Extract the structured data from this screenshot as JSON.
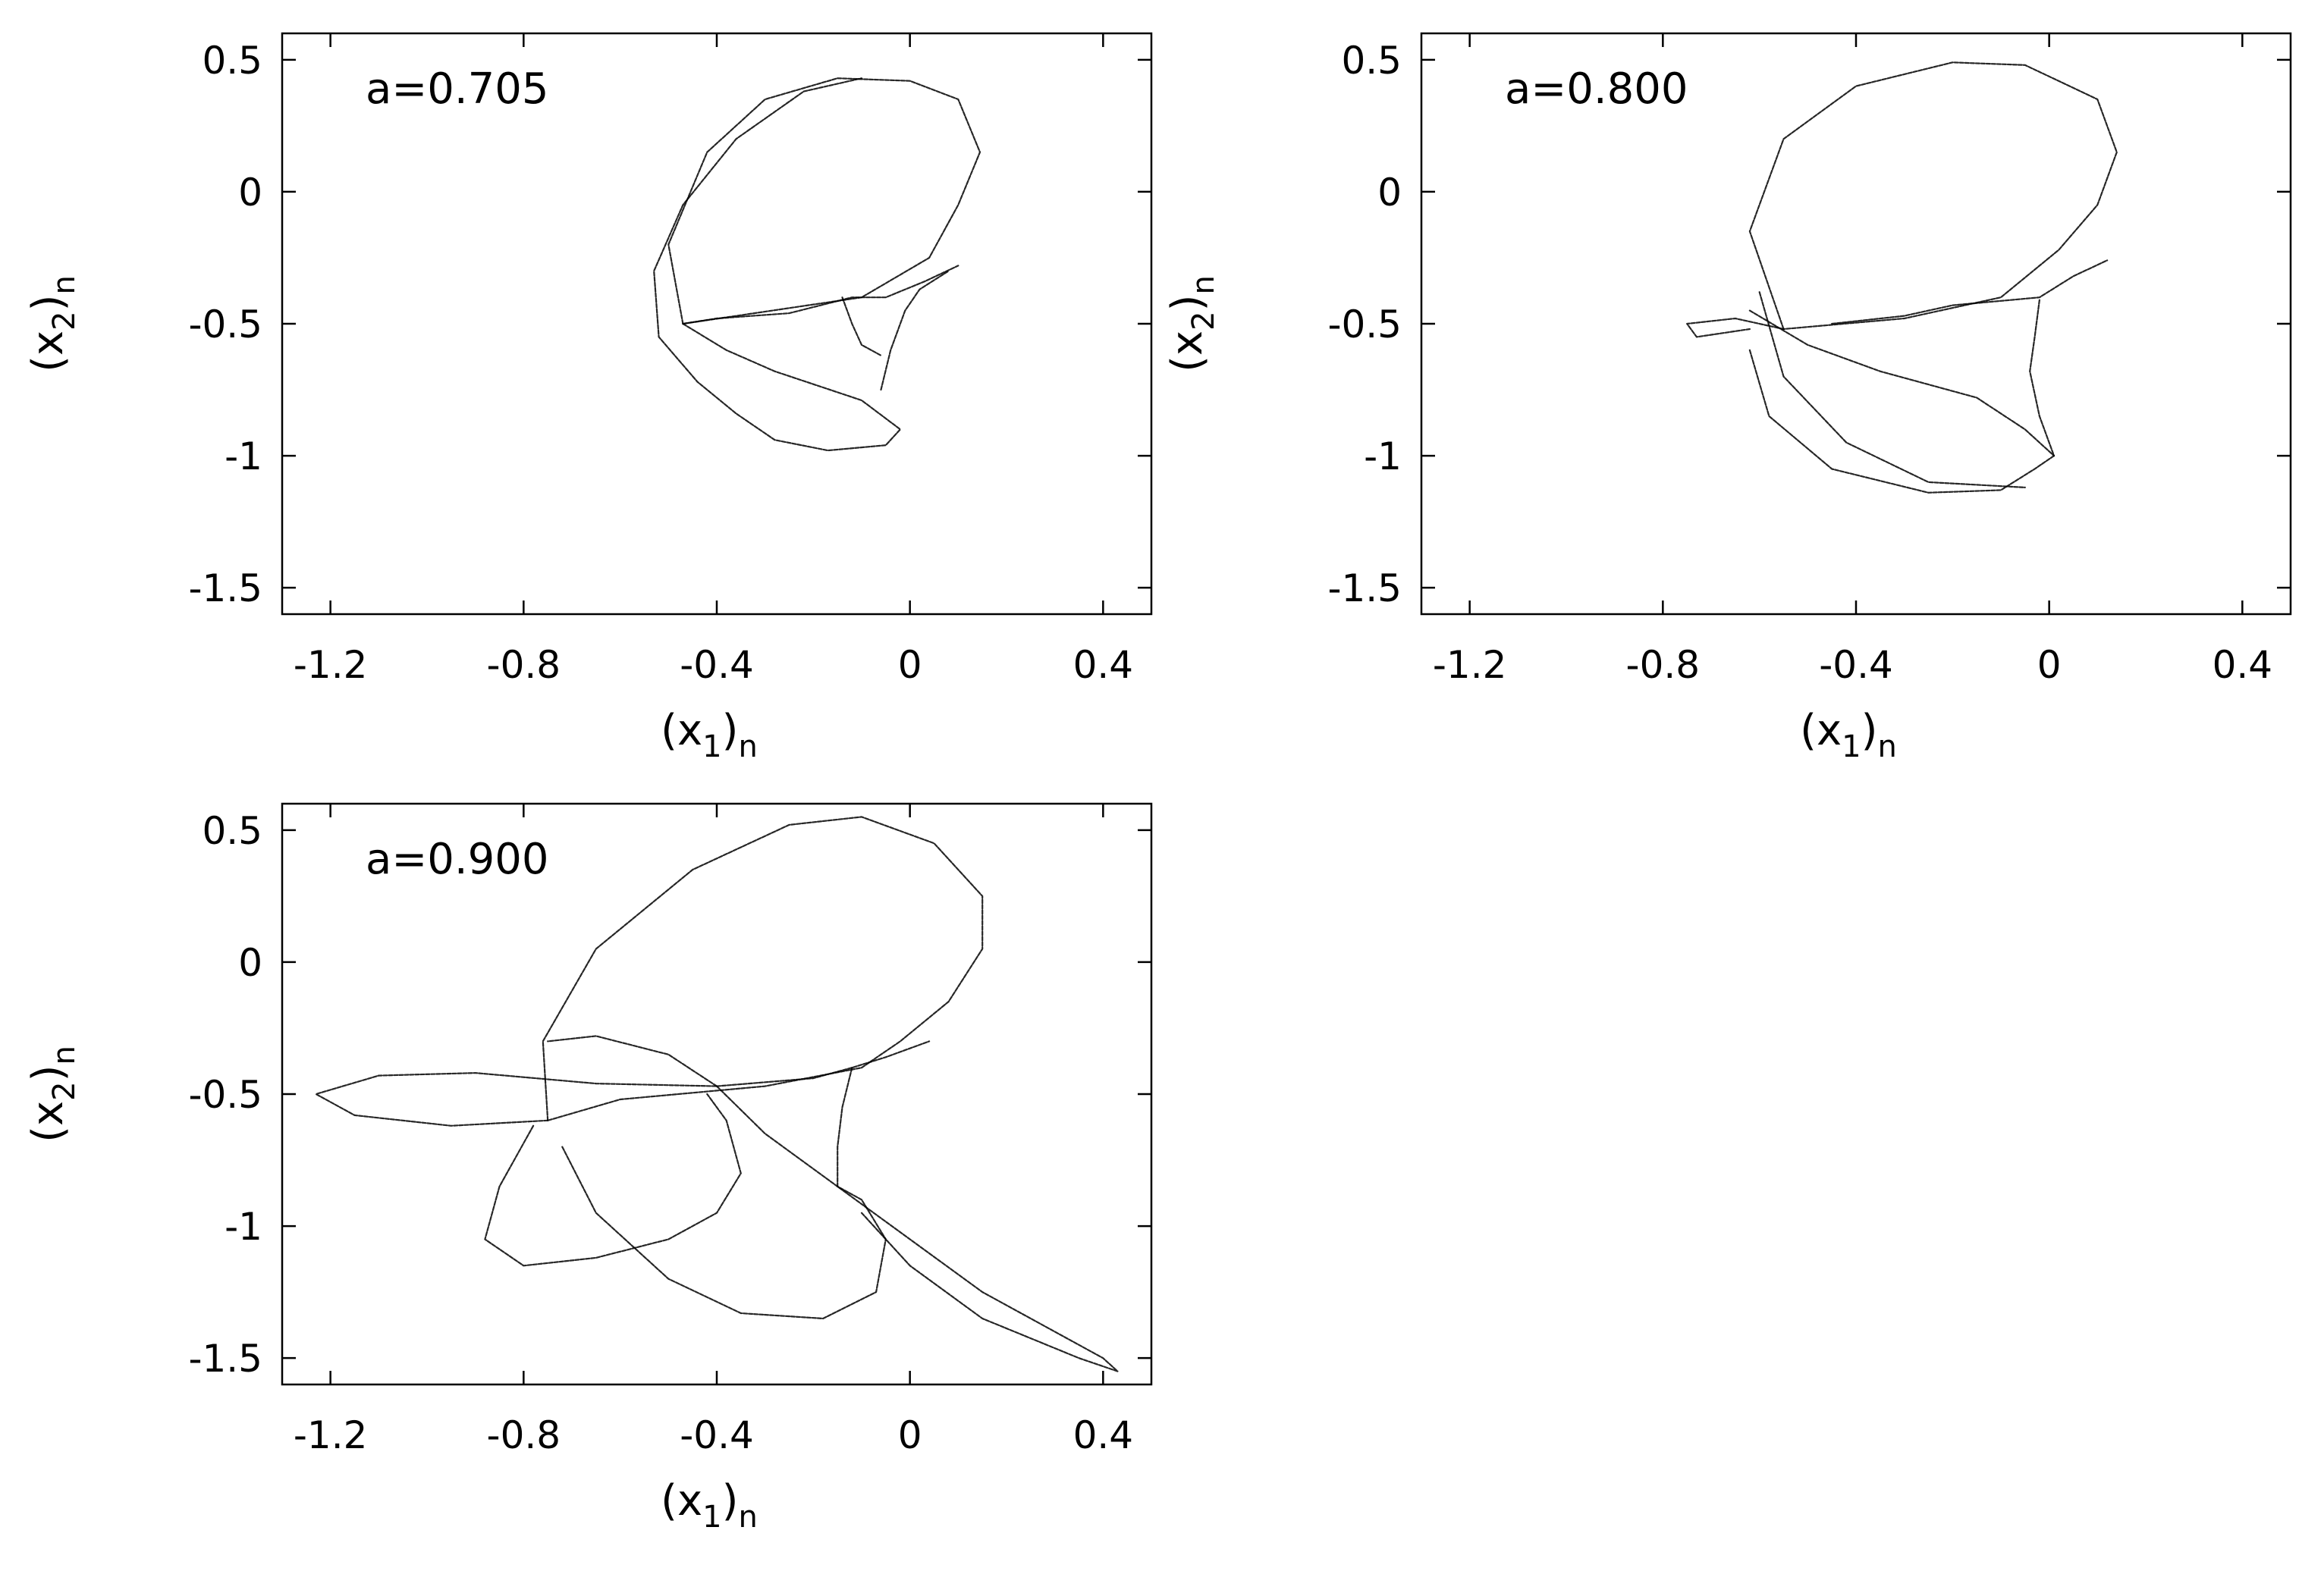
{
  "chart_data": [
    {
      "type": "scatter",
      "annotation": "a=0.705",
      "xlabel": {
        "base": "(x",
        "sub": "1",
        "close": ")",
        "sub2": "n"
      },
      "ylabel": {
        "base": "(x",
        "sub": "2",
        "close": ")",
        "sub2": "n"
      },
      "xlim": [
        -1.3,
        0.5
      ],
      "ylim": [
        -1.6,
        0.6
      ],
      "xticks": [
        -1.2,
        -0.8,
        -0.4,
        0,
        0.4
      ],
      "xtick_labels": [
        "-1.2",
        "-0.8",
        "-0.4",
        "0",
        "0.4"
      ],
      "yticks": [
        -1.5,
        -1,
        -0.5,
        0,
        0.5
      ],
      "ytick_labels": [
        "-1.5",
        "-1",
        "-0.5",
        "0",
        "0.5"
      ],
      "grid": false,
      "point_color": "#000000",
      "curves": [
        [
          [
            -0.47,
            -0.5
          ],
          [
            -0.5,
            -0.2
          ],
          [
            -0.42,
            0.15
          ],
          [
            -0.3,
            0.35
          ],
          [
            -0.15,
            0.43
          ],
          [
            0.0,
            0.42
          ],
          [
            0.1,
            0.35
          ],
          [
            0.145,
            0.15
          ],
          [
            0.1,
            -0.05
          ],
          [
            0.04,
            -0.25
          ],
          [
            -0.1,
            -0.4
          ],
          [
            -0.47,
            -0.5
          ]
        ],
        [
          [
            -0.47,
            -0.5
          ],
          [
            -0.4,
            -0.48
          ],
          [
            -0.25,
            -0.46
          ],
          [
            -0.12,
            -0.4
          ],
          [
            -0.05,
            -0.4
          ],
          [
            0.03,
            -0.34
          ],
          [
            0.1,
            -0.28
          ]
        ],
        [
          [
            -0.14,
            -0.4
          ],
          [
            -0.12,
            -0.5
          ],
          [
            -0.1,
            -0.58
          ],
          [
            -0.06,
            -0.62
          ]
        ],
        [
          [
            -0.06,
            -0.75
          ],
          [
            -0.04,
            -0.6
          ],
          [
            -0.01,
            -0.45
          ],
          [
            0.02,
            -0.37
          ],
          [
            0.08,
            -0.3
          ]
        ],
        [
          [
            -0.47,
            -0.5
          ],
          [
            -0.38,
            -0.6
          ],
          [
            -0.28,
            -0.68
          ],
          [
            -0.1,
            -0.79
          ],
          [
            -0.02,
            -0.9
          ],
          [
            -0.05,
            -0.96
          ],
          [
            -0.17,
            -0.98
          ],
          [
            -0.28,
            -0.94
          ],
          [
            -0.36,
            -0.84
          ],
          [
            -0.44,
            -0.72
          ],
          [
            -0.52,
            -0.55
          ],
          [
            -0.53,
            -0.3
          ],
          [
            -0.47,
            -0.05
          ],
          [
            -0.36,
            0.2
          ],
          [
            -0.22,
            0.38
          ],
          [
            -0.1,
            0.43
          ]
        ]
      ]
    },
    {
      "type": "scatter",
      "annotation": "a=0.800",
      "xlabel": {
        "base": "(x",
        "sub": "1",
        "close": ")",
        "sub2": "n"
      },
      "ylabel": {
        "base": "(x",
        "sub": "2",
        "close": ")",
        "sub2": "n"
      },
      "xlim": [
        -1.3,
        0.5
      ],
      "ylim": [
        -1.6,
        0.6
      ],
      "xticks": [
        -1.2,
        -0.8,
        -0.4,
        0,
        0.4
      ],
      "xtick_labels": [
        "-1.2",
        "-0.8",
        "-0.4",
        "0",
        "0.4"
      ],
      "yticks": [
        -1.5,
        -1,
        -0.5,
        0,
        0.5
      ],
      "ytick_labels": [
        "-1.5",
        "-1",
        "-0.5",
        "0",
        "0.5"
      ],
      "grid": false,
      "point_color": "#000000",
      "curves": [
        [
          [
            -0.55,
            -0.52
          ],
          [
            -0.62,
            -0.15
          ],
          [
            -0.55,
            0.2
          ],
          [
            -0.4,
            0.4
          ],
          [
            -0.2,
            0.49
          ],
          [
            -0.05,
            0.48
          ],
          [
            0.1,
            0.35
          ],
          [
            0.14,
            0.15
          ],
          [
            0.1,
            -0.05
          ],
          [
            0.02,
            -0.22
          ],
          [
            -0.1,
            -0.4
          ],
          [
            -0.3,
            -0.48
          ],
          [
            -0.55,
            -0.52
          ]
        ],
        [
          [
            -0.55,
            -0.52
          ],
          [
            -0.65,
            -0.48
          ],
          [
            -0.75,
            -0.5
          ],
          [
            -0.73,
            -0.55
          ],
          [
            -0.62,
            -0.52
          ]
        ],
        [
          [
            -0.45,
            -0.5
          ],
          [
            -0.3,
            -0.47
          ],
          [
            -0.2,
            -0.43
          ],
          [
            -0.08,
            -0.41
          ],
          [
            -0.02,
            -0.4
          ],
          [
            0.05,
            -0.32
          ],
          [
            0.12,
            -0.26
          ]
        ],
        [
          [
            -0.02,
            -0.41
          ],
          [
            -0.03,
            -0.55
          ],
          [
            -0.04,
            -0.68
          ],
          [
            -0.02,
            -0.85
          ],
          [
            0.01,
            -1.0
          ]
        ],
        [
          [
            -0.62,
            -0.45
          ],
          [
            -0.5,
            -0.58
          ],
          [
            -0.35,
            -0.68
          ],
          [
            -0.15,
            -0.78
          ],
          [
            -0.05,
            -0.9
          ],
          [
            0.01,
            -1.0
          ]
        ],
        [
          [
            -0.62,
            -0.6
          ],
          [
            -0.58,
            -0.85
          ],
          [
            -0.45,
            -1.05
          ],
          [
            -0.25,
            -1.14
          ],
          [
            -0.1,
            -1.13
          ],
          [
            -0.03,
            -1.05
          ],
          [
            0.01,
            -1.0
          ]
        ],
        [
          [
            -0.6,
            -0.38
          ],
          [
            -0.55,
            -0.7
          ],
          [
            -0.42,
            -0.95
          ],
          [
            -0.25,
            -1.1
          ],
          [
            -0.05,
            -1.12
          ]
        ]
      ]
    },
    {
      "type": "scatter",
      "annotation": "a=0.900",
      "xlabel": {
        "base": "(x",
        "sub": "1",
        "close": ")",
        "sub2": "n"
      },
      "ylabel": {
        "base": "(x",
        "sub": "2",
        "close": ")",
        "sub2": "n"
      },
      "xlim": [
        -1.3,
        0.5
      ],
      "ylim": [
        -1.6,
        0.6
      ],
      "xticks": [
        -1.2,
        -0.8,
        -0.4,
        0,
        0.4
      ],
      "xtick_labels": [
        "-1.2",
        "-0.8",
        "-0.4",
        "0",
        "0.4"
      ],
      "yticks": [
        -1.5,
        -1,
        -0.5,
        0,
        0.5
      ],
      "ytick_labels": [
        "-1.5",
        "-1",
        "-0.5",
        "0",
        "0.5"
      ],
      "grid": false,
      "point_color": "#000000",
      "curves": [
        [
          [
            -0.75,
            -0.6
          ],
          [
            -0.76,
            -0.3
          ],
          [
            -0.65,
            0.05
          ],
          [
            -0.45,
            0.35
          ],
          [
            -0.25,
            0.52
          ],
          [
            -0.1,
            0.55
          ],
          [
            0.05,
            0.45
          ],
          [
            0.15,
            0.25
          ],
          [
            0.15,
            0.05
          ],
          [
            0.08,
            -0.15
          ],
          [
            -0.02,
            -0.3
          ],
          [
            -0.1,
            -0.4
          ],
          [
            -0.3,
            -0.47
          ],
          [
            -0.6,
            -0.52
          ],
          [
            -0.75,
            -0.6
          ]
        ],
        [
          [
            -0.75,
            -0.6
          ],
          [
            -0.95,
            -0.62
          ],
          [
            -1.15,
            -0.58
          ],
          [
            -1.23,
            -0.5
          ],
          [
            -1.1,
            -0.43
          ],
          [
            -0.9,
            -0.42
          ],
          [
            -0.65,
            -0.46
          ],
          [
            -0.4,
            -0.47
          ]
        ],
        [
          [
            -0.4,
            -0.47
          ],
          [
            -0.2,
            -0.44
          ],
          [
            -0.12,
            -0.4
          ],
          [
            -0.05,
            -0.36
          ],
          [
            0.04,
            -0.3
          ]
        ],
        [
          [
            -0.12,
            -0.4
          ],
          [
            -0.14,
            -0.55
          ],
          [
            -0.15,
            -0.7
          ],
          [
            -0.15,
            -0.85
          ]
        ],
        [
          [
            -0.72,
            -0.7
          ],
          [
            -0.65,
            -0.95
          ],
          [
            -0.5,
            -1.2
          ],
          [
            -0.35,
            -1.33
          ],
          [
            -0.18,
            -1.35
          ],
          [
            -0.07,
            -1.25
          ],
          [
            -0.05,
            -1.05
          ],
          [
            -0.1,
            -0.9
          ],
          [
            -0.15,
            -0.85
          ]
        ],
        [
          [
            -0.4,
            -0.47
          ],
          [
            -0.3,
            -0.65
          ],
          [
            -0.15,
            -0.85
          ],
          [
            0.0,
            -1.05
          ],
          [
            0.15,
            -1.25
          ],
          [
            0.3,
            -1.4
          ],
          [
            0.4,
            -1.5
          ],
          [
            0.43,
            -1.55
          ],
          [
            0.35,
            -1.5
          ],
          [
            0.15,
            -1.35
          ],
          [
            0.0,
            -1.15
          ],
          [
            -0.1,
            -0.95
          ]
        ],
        [
          [
            -0.78,
            -0.62
          ],
          [
            -0.85,
            -0.85
          ],
          [
            -0.88,
            -1.05
          ],
          [
            -0.8,
            -1.15
          ],
          [
            -0.65,
            -1.12
          ],
          [
            -0.5,
            -1.05
          ],
          [
            -0.4,
            -0.95
          ],
          [
            -0.35,
            -0.8
          ],
          [
            -0.38,
            -0.6
          ],
          [
            -0.42,
            -0.5
          ]
        ],
        [
          [
            -0.4,
            -0.47
          ],
          [
            -0.5,
            -0.35
          ],
          [
            -0.65,
            -0.28
          ],
          [
            -0.75,
            -0.3
          ]
        ]
      ]
    }
  ]
}
